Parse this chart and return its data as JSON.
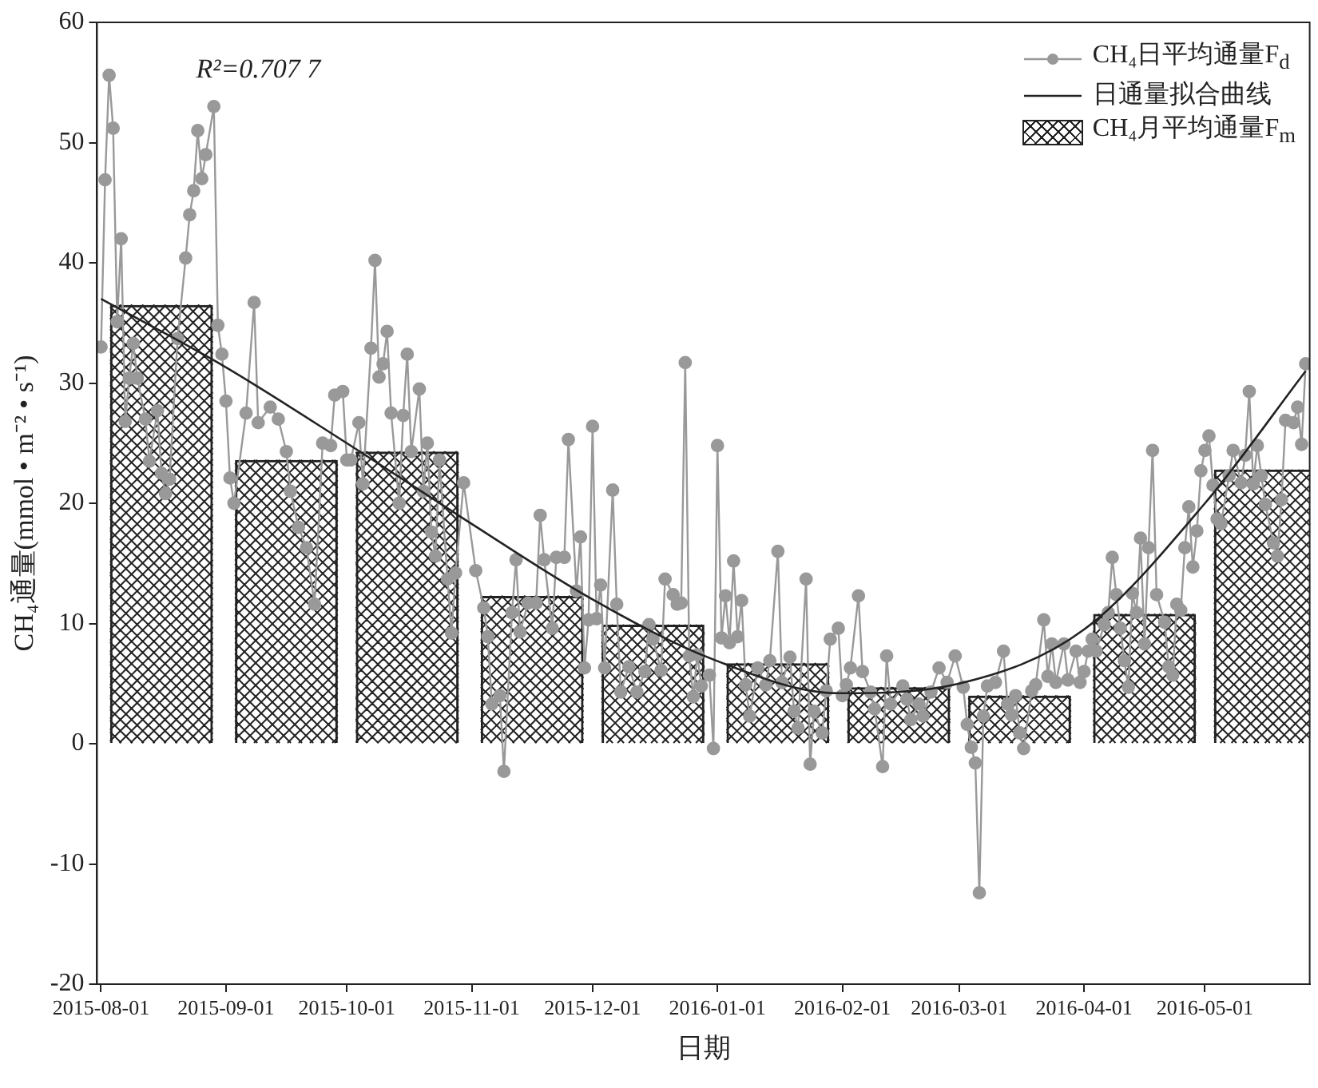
{
  "chart_data": {
    "type": "line",
    "xlabel": "日期",
    "ylabel": "CH₄通量(mmol • m⁻² • s⁻¹)",
    "annotations": [
      "R²=0.707 7"
    ],
    "legend": "top right",
    "xlim": [
      "2015-07-31",
      "2016-05-27"
    ],
    "xticks": [
      "2015-08-01",
      "2015-09-01",
      "2015-10-01",
      "2015-11-01",
      "2015-12-01",
      "2016-01-01",
      "2016-02-01",
      "2016-03-01",
      "2016-04-01",
      "2016-05-01"
    ],
    "ylim": [
      -20,
      60
    ],
    "yticks": [
      -20,
      -10,
      0,
      10,
      20,
      30,
      40,
      50,
      60
    ],
    "series": [
      {
        "name": "CH₄月平均通量F$_{m}$",
        "type": "bar",
        "color": "#222222",
        "x": [
          "2015-08-16",
          "2015-09-16",
          "2015-10-16",
          "2015-11-16",
          "2015-12-16",
          "2016-01-16",
          "2016-02-15",
          "2016-03-16",
          "2016-04-16",
          "2016-05-16"
        ],
        "values": [
          36.5,
          23.6,
          24.3,
          12.3,
          9.9,
          6.7,
          4.7,
          4.0,
          10.8,
          22.8
        ]
      },
      {
        "name": "CH₄日平均通量F$_{d}$",
        "marker": "circle",
        "color": "#999999",
        "x": [
          "2015-08-01",
          "2015-08-02",
          "2015-08-03",
          "2015-08-04",
          "2015-08-05",
          "2015-08-06",
          "2015-08-07",
          "2015-08-08",
          "2015-08-09",
          "2015-08-10",
          "2015-08-12",
          "2015-08-13",
          "2015-08-15",
          "2015-08-16",
          "2015-08-17",
          "2015-08-18",
          "2015-08-20",
          "2015-08-22",
          "2015-08-23",
          "2015-08-24",
          "2015-08-25",
          "2015-08-26",
          "2015-08-27",
          "2015-08-29",
          "2015-08-30",
          "2015-08-31",
          "2015-09-01",
          "2015-09-02",
          "2015-09-03",
          "2015-09-06",
          "2015-09-08",
          "2015-09-09",
          "2015-09-12",
          "2015-09-14",
          "2015-09-16",
          "2015-09-17",
          "2015-09-19",
          "2015-09-21",
          "2015-09-23",
          "2015-09-25",
          "2015-09-27",
          "2015-09-28",
          "2015-09-30",
          "2015-10-01",
          "2015-10-02",
          "2015-10-04",
          "2015-10-05",
          "2015-10-07",
          "2015-10-08",
          "2015-10-09",
          "2015-10-10",
          "2015-10-11",
          "2015-10-12",
          "2015-10-14",
          "2015-10-15",
          "2015-10-16",
          "2015-10-17",
          "2015-10-19",
          "2015-10-20",
          "2015-10-21",
          "2015-10-22",
          "2015-10-23",
          "2015-10-24",
          "2015-10-26",
          "2015-10-27",
          "2015-10-28",
          "2015-10-30",
          "2015-11-02",
          "2015-11-04",
          "2015-11-05",
          "2015-11-06",
          "2015-11-08",
          "2015-11-09",
          "2015-11-11",
          "2015-11-12",
          "2015-11-13",
          "2015-11-15",
          "2015-11-17",
          "2015-11-18",
          "2015-11-19",
          "2015-11-21",
          "2015-11-22",
          "2015-11-24",
          "2015-11-25",
          "2015-11-27",
          "2015-11-28",
          "2015-11-29",
          "2015-11-30",
          "2015-12-01",
          "2015-12-02",
          "2015-12-03",
          "2015-12-04",
          "2015-12-06",
          "2015-12-07",
          "2015-12-08",
          "2015-12-10",
          "2015-12-12",
          "2015-12-14",
          "2015-12-15",
          "2015-12-16",
          "2015-12-18",
          "2015-12-19",
          "2015-12-21",
          "2015-12-22",
          "2015-12-23",
          "2015-12-24",
          "2015-12-25",
          "2015-12-26",
          "2015-12-27",
          "2015-12-28",
          "2015-12-30",
          "2015-12-31",
          "2016-01-01",
          "2016-01-02",
          "2016-01-03",
          "2016-01-04",
          "2016-01-05",
          "2016-01-06",
          "2016-01-07",
          "2016-01-08",
          "2016-01-09",
          "2016-01-11",
          "2016-01-13",
          "2016-01-14",
          "2016-01-16",
          "2016-01-17",
          "2016-01-19",
          "2016-01-20",
          "2016-01-21",
          "2016-01-23",
          "2016-01-24",
          "2016-01-25",
          "2016-01-27",
          "2016-01-28",
          "2016-01-29",
          "2016-01-31",
          "2016-02-01",
          "2016-02-02",
          "2016-02-03",
          "2016-02-05",
          "2016-02-06",
          "2016-02-08",
          "2016-02-09",
          "2016-02-11",
          "2016-02-12",
          "2016-02-13",
          "2016-02-16",
          "2016-02-17",
          "2016-02-18",
          "2016-02-20",
          "2016-02-21",
          "2016-02-23",
          "2016-02-25",
          "2016-02-27",
          "2016-02-29",
          "2016-03-02",
          "2016-03-03",
          "2016-03-04",
          "2016-03-05",
          "2016-03-06",
          "2016-03-07",
          "2016-03-08",
          "2016-03-10",
          "2016-03-12",
          "2016-03-13",
          "2016-03-14",
          "2016-03-15",
          "2016-03-16",
          "2016-03-17",
          "2016-03-19",
          "2016-03-20",
          "2016-03-22",
          "2016-03-23",
          "2016-03-24",
          "2016-03-25",
          "2016-03-27",
          "2016-03-28",
          "2016-03-30",
          "2016-03-31",
          "2016-04-01",
          "2016-04-02",
          "2016-04-03",
          "2016-04-04",
          "2016-04-06",
          "2016-04-07",
          "2016-04-08",
          "2016-04-09",
          "2016-04-10",
          "2016-04-11",
          "2016-04-12",
          "2016-04-13",
          "2016-04-14",
          "2016-04-15",
          "2016-04-16",
          "2016-04-17",
          "2016-04-18",
          "2016-04-19",
          "2016-04-21",
          "2016-04-22",
          "2016-04-23",
          "2016-04-24",
          "2016-04-25",
          "2016-04-26",
          "2016-04-27",
          "2016-04-28",
          "2016-04-29",
          "2016-04-30",
          "2016-05-01",
          "2016-05-02",
          "2016-05-03",
          "2016-05-04",
          "2016-05-05",
          "2016-05-07",
          "2016-05-08",
          "2016-05-10",
          "2016-05-11",
          "2016-05-12",
          "2016-05-13",
          "2016-05-14",
          "2016-05-15",
          "2016-05-16",
          "2016-05-18",
          "2016-05-19",
          "2016-05-20",
          "2016-05-21",
          "2016-05-23",
          "2016-05-24",
          "2016-05-25",
          "2016-05-26"
        ],
        "values": [
          33,
          46.9,
          55.6,
          51.2,
          35.1,
          42,
          26.8,
          30.4,
          33.3,
          30.4,
          27,
          23.5,
          27.7,
          22.5,
          20.8,
          22,
          33.7,
          40.4,
          44,
          46,
          51,
          47,
          49,
          53,
          34.8,
          32.4,
          28.5,
          22.1,
          20,
          27.5,
          36.7,
          26.7,
          28,
          27,
          24.3,
          21,
          18,
          16.3,
          11.6,
          25,
          24.8,
          29,
          29.3,
          23.6,
          23.6,
          26.7,
          21.6,
          32.9,
          40.2,
          30.5,
          31.6,
          34.3,
          27.5,
          20,
          27.3,
          32.4,
          24.3,
          29.5,
          21,
          25,
          17.6,
          15.6,
          23.6,
          13.7,
          9.2,
          14.2,
          21.7,
          14.4,
          11.3,
          8.9,
          3.3,
          4,
          -2.3,
          10.9,
          15.3,
          9.3,
          11.7,
          11.7,
          19,
          15.3,
          9.6,
          15.5,
          15.5,
          25.3,
          12.7,
          17.2,
          6.3,
          10.3,
          26.4,
          10.4,
          13.2,
          6.3,
          21.1,
          11.6,
          4.3,
          6.4,
          4.3,
          6,
          9.9,
          8.7,
          6.1,
          13.7,
          12.4,
          11.6,
          11.7,
          31.7,
          7.3,
          3.9,
          7.4,
          4.8,
          5.7,
          -0.4,
          24.8,
          8.8,
          12.3,
          8.4,
          15.2,
          8.9,
          11.9,
          4.9,
          2.3,
          6.3,
          4.9,
          6.9,
          16,
          5.1,
          7.2,
          2.7,
          1.3,
          13.7,
          -1.7,
          2.7,
          0.9,
          4.4,
          8.7,
          9.6,
          4,
          4.9,
          6.3,
          12.3,
          6,
          4.3,
          2.9,
          -1.9,
          7.3,
          3.3,
          4.8,
          3.7,
          2,
          3.3,
          2.3,
          4.3,
          6.3,
          5.1,
          7.3,
          4.7,
          1.6,
          -0.3,
          -1.6,
          -12.4,
          2.3,
          4.8,
          5.1,
          7.7,
          3.3,
          2.4,
          4,
          0.9,
          -0.4,
          4.4,
          4.9,
          10.3,
          5.6,
          8.3,
          5.1,
          8.3,
          5.3,
          7.7,
          5.1,
          6,
          7.7,
          8.7,
          7.7,
          9.9,
          10.9,
          15.5,
          12.4,
          9.6,
          6.9,
          4.7,
          12.5,
          10.9,
          17.1,
          8.3,
          16.3,
          24.4,
          12.4,
          10.1,
          6.4,
          5.7,
          11.6,
          11.1,
          16.3,
          19.7,
          14.7,
          17.7,
          22.7,
          24.4,
          25.6,
          21.5,
          18.7,
          18.3,
          22.3,
          24.4,
          21.7,
          24,
          29.3,
          21.6,
          24.8,
          22.3,
          19.9,
          16.7,
          15.6,
          20.3,
          26.9,
          26.7,
          28,
          24.9,
          31.6
        ]
      },
      {
        "name": "日通量拟合曲线",
        "marker": "none",
        "color": "#222222",
        "x": [
          "2015-08-01",
          "2015-08-31",
          "2015-10-01",
          "2015-10-31",
          "2015-12-01",
          "2015-12-31",
          "2016-01-31",
          "2016-03-01",
          "2016-04-01",
          "2016-05-01",
          "2016-05-26"
        ],
        "values": [
          37,
          31.5,
          25,
          18.5,
          12,
          7,
          4.2,
          5,
          9.5,
          20,
          31
        ]
      }
    ]
  }
}
